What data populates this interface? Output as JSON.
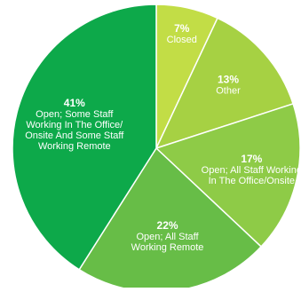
{
  "chart_data": {
    "type": "pie",
    "slices": [
      {
        "label_lines": [
          "Closed"
        ],
        "value": 7,
        "pct_text": "7%",
        "color": "#c2dd46"
      },
      {
        "label_lines": [
          "Other"
        ],
        "value": 13,
        "pct_text": "13%",
        "color": "#a6d143"
      },
      {
        "label_lines": [
          "Open; All Staff Working",
          "In The Office/Onsite"
        ],
        "value": 17,
        "pct_text": "17%",
        "color": "#8ecb47"
      },
      {
        "label_lines": [
          "Open; All Staff",
          "Working Remote"
        ],
        "value": 22,
        "pct_text": "22%",
        "color": "#67bd47"
      },
      {
        "label_lines": [
          "Open; Some Staff",
          "Working In The Office/",
          "Onsite And Some Staff",
          "Working Remote"
        ],
        "value": 41,
        "pct_text": "41%",
        "color": "#0da94a"
      }
    ]
  }
}
